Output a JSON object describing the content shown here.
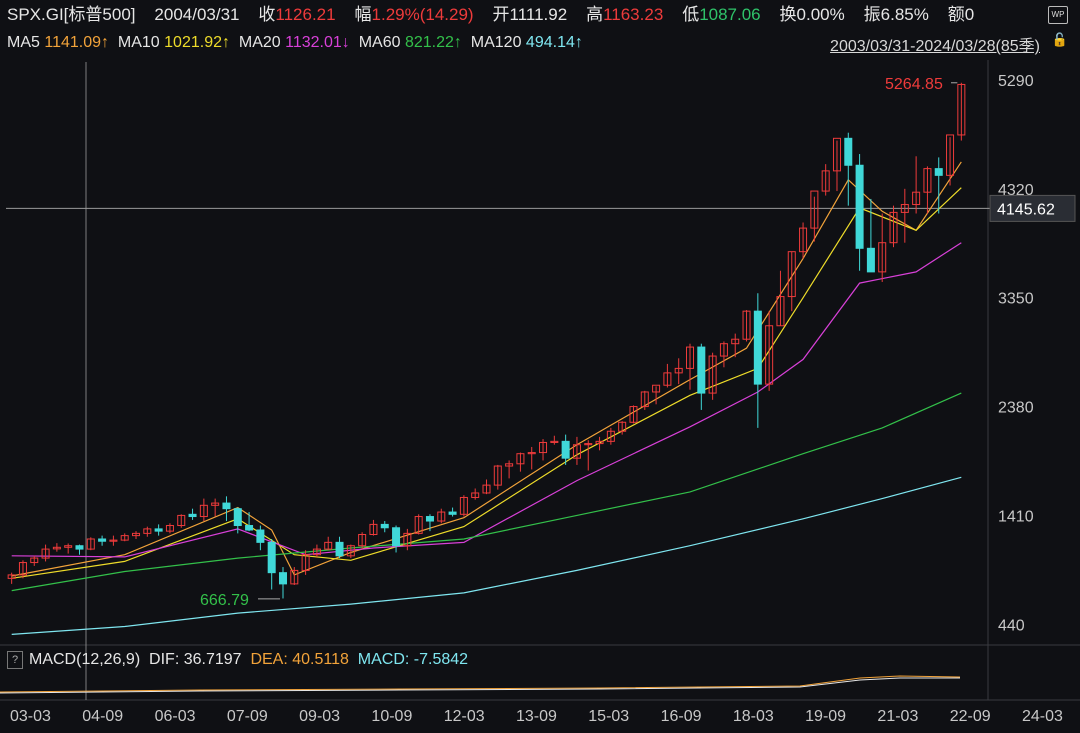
{
  "header": {
    "symbol": "SPX.GI[标普500]",
    "date": "2004/03/31",
    "close_label": "收",
    "close": "1126.21",
    "change_label": "幅",
    "change": "1.29%(14.29)",
    "open_label": "开",
    "open": "1111.92",
    "high_label": "高",
    "high": "1163.23",
    "low_label": "低",
    "low": "1087.06",
    "turnover_label": "换",
    "turnover": "0.00%",
    "amplitude_label": "振",
    "amplitude": "6.85%",
    "amount_label": "额",
    "amount": "0",
    "wp_label": "WP"
  },
  "ma_legend": {
    "ma5_label": "MA5",
    "ma5": "1141.09↑",
    "ma10_label": "MA10",
    "ma10": "1021.92↑",
    "ma20_label": "MA20",
    "ma20": "1132.01↓",
    "ma60_label": "MA60",
    "ma60": "821.22↑",
    "ma120_label": "MA120",
    "ma120": "494.14↑",
    "range": "2003/03/31-2024/03/28(85季)"
  },
  "macd": {
    "q": "?",
    "label": "MACD(12,26,9)",
    "dif": "DIF: 36.7197",
    "dea": "DEA: 40.5118",
    "macd": "MACD: -7.5842"
  },
  "colors": {
    "up": "#ee3b3b",
    "down": "#40d8d8",
    "ma5": "#f2a33a",
    "ma10": "#eedc2a",
    "ma20": "#d840d8",
    "ma60": "#33c04a",
    "ma120": "#7fe6f0",
    "crosshair": "#9a9a9a"
  },
  "chart_data": {
    "type": "candlestick",
    "period": "quarterly",
    "x_tick_labels": [
      "03-03",
      "04-09",
      "06-03",
      "07-09",
      "09-03",
      "10-09",
      "12-03",
      "13-09",
      "15-03",
      "16-09",
      "18-03",
      "19-09",
      "21-03",
      "22-09",
      "24-03"
    ],
    "y_tick_labels": [
      "5290",
      "4320",
      "3350",
      "2380",
      "1410",
      "440"
    ],
    "ylim": [
      300,
      5450
    ],
    "max_label": "5264.85",
    "min_label": "666.79",
    "crosshair_value": "4145.62",
    "candles": [
      [
        849,
        900,
        800,
        880
      ],
      [
        880,
        1010,
        850,
        990
      ],
      [
        990,
        1050,
        960,
        1030
      ],
      [
        1030,
        1150,
        1000,
        1110
      ],
      [
        1112,
        1163,
        1087,
        1126
      ],
      [
        1126,
        1160,
        1070,
        1140
      ],
      [
        1140,
        1150,
        1060,
        1110
      ],
      [
        1110,
        1215,
        1100,
        1200
      ],
      [
        1200,
        1230,
        1140,
        1180
      ],
      [
        1180,
        1230,
        1140,
        1190
      ],
      [
        1190,
        1250,
        1180,
        1230
      ],
      [
        1230,
        1270,
        1200,
        1250
      ],
      [
        1250,
        1310,
        1220,
        1290
      ],
      [
        1290,
        1330,
        1230,
        1270
      ],
      [
        1270,
        1340,
        1250,
        1320
      ],
      [
        1320,
        1420,
        1300,
        1410
      ],
      [
        1420,
        1470,
        1370,
        1400
      ],
      [
        1400,
        1560,
        1360,
        1500
      ],
      [
        1500,
        1560,
        1400,
        1520
      ],
      [
        1520,
        1580,
        1360,
        1470
      ],
      [
        1470,
        1480,
        1250,
        1320
      ],
      [
        1320,
        1440,
        1270,
        1280
      ],
      [
        1280,
        1320,
        1100,
        1170
      ],
      [
        1170,
        1200,
        750,
        900
      ],
      [
        900,
        950,
        670,
        800
      ],
      [
        800,
        950,
        790,
        920
      ],
      [
        920,
        1100,
        880,
        1060
      ],
      [
        1060,
        1150,
        1040,
        1110
      ],
      [
        1110,
        1220,
        1100,
        1170
      ],
      [
        1170,
        1220,
        1030,
        1050
      ],
      [
        1050,
        1150,
        1030,
        1140
      ],
      [
        1140,
        1260,
        1110,
        1240
      ],
      [
        1240,
        1370,
        1230,
        1330
      ],
      [
        1330,
        1360,
        1260,
        1300
      ],
      [
        1300,
        1320,
        1080,
        1140
      ],
      [
        1140,
        1290,
        1100,
        1250
      ],
      [
        1250,
        1420,
        1240,
        1400
      ],
      [
        1400,
        1420,
        1270,
        1360
      ],
      [
        1360,
        1470,
        1340,
        1440
      ],
      [
        1440,
        1480,
        1400,
        1420
      ],
      [
        1420,
        1590,
        1400,
        1570
      ],
      [
        1570,
        1650,
        1550,
        1610
      ],
      [
        1610,
        1730,
        1600,
        1680
      ],
      [
        1680,
        1860,
        1640,
        1850
      ],
      [
        1850,
        1900,
        1740,
        1870
      ],
      [
        1870,
        1970,
        1800,
        1960
      ],
      [
        1960,
        2020,
        1820,
        1970
      ],
      [
        1970,
        2090,
        1900,
        2060
      ],
      [
        2060,
        2120,
        2040,
        2070
      ],
      [
        2070,
        2130,
        1860,
        1920
      ],
      [
        1920,
        2110,
        1860,
        2040
      ],
      [
        2040,
        2080,
        1810,
        2050
      ],
      [
        2050,
        2110,
        1990,
        2070
      ],
      [
        2070,
        2190,
        2040,
        2160
      ],
      [
        2160,
        2250,
        2130,
        2240
      ],
      [
        2240,
        2390,
        2230,
        2380
      ],
      [
        2380,
        2520,
        2350,
        2510
      ],
      [
        2510,
        2560,
        2400,
        2570
      ],
      [
        2570,
        2760,
        2550,
        2680
      ],
      [
        2680,
        2810,
        2580,
        2720
      ],
      [
        2720,
        2940,
        2530,
        2910
      ],
      [
        2910,
        2940,
        2350,
        2500
      ],
      [
        2500,
        2860,
        2440,
        2830
      ],
      [
        2830,
        2960,
        2730,
        2940
      ],
      [
        2940,
        3030,
        2820,
        2980
      ],
      [
        2980,
        3240,
        2960,
        3230
      ],
      [
        3230,
        3390,
        2190,
        2580
      ],
      [
        2580,
        3230,
        2520,
        3100
      ],
      [
        3100,
        3590,
        3100,
        3360
      ],
      [
        3360,
        3760,
        3230,
        3760
      ],
      [
        3760,
        4020,
        3700,
        3970
      ],
      [
        3970,
        4250,
        3850,
        4300
      ],
      [
        4300,
        4540,
        4260,
        4480
      ],
      [
        4480,
        4750,
        4300,
        4770
      ],
      [
        4770,
        4820,
        4170,
        4530
      ],
      [
        4530,
        4630,
        3590,
        3790
      ],
      [
        3790,
        4230,
        3630,
        3580
      ],
      [
        3580,
        4100,
        3490,
        3840
      ],
      [
        3840,
        4170,
        3800,
        4110
      ],
      [
        4110,
        4320,
        3840,
        4180
      ],
      [
        4180,
        4610,
        4100,
        4290
      ],
      [
        4290,
        4520,
        4100,
        4500
      ],
      [
        4500,
        4600,
        4100,
        4440
      ],
      [
        4440,
        4780,
        4350,
        4800
      ],
      [
        4800,
        5265,
        4750,
        5250
      ]
    ],
    "ma_series": [
      {
        "name": "MA5",
        "values": [
          [
            0,
            870
          ],
          [
            10,
            1060
          ],
          [
            20,
            1480
          ],
          [
            23,
            1280
          ],
          [
            25,
            880
          ],
          [
            30,
            1080
          ],
          [
            40,
            1390
          ],
          [
            50,
            2040
          ],
          [
            60,
            2620
          ],
          [
            65,
            2900
          ],
          [
            70,
            3700
          ],
          [
            74,
            4400
          ],
          [
            77,
            4120
          ],
          [
            80,
            3950
          ],
          [
            84,
            4560
          ]
        ]
      },
      {
        "name": "MA10",
        "values": [
          [
            0,
            850
          ],
          [
            10,
            1000
          ],
          [
            20,
            1380
          ],
          [
            25,
            1060
          ],
          [
            30,
            1010
          ],
          [
            40,
            1310
          ],
          [
            50,
            1950
          ],
          [
            60,
            2480
          ],
          [
            66,
            2720
          ],
          [
            70,
            3350
          ],
          [
            75,
            4150
          ],
          [
            80,
            3950
          ],
          [
            84,
            4330
          ]
        ]
      },
      {
        "name": "MA20",
        "values": [
          [
            0,
            1050
          ],
          [
            10,
            1040
          ],
          [
            20,
            1290
          ],
          [
            26,
            1060
          ],
          [
            32,
            1120
          ],
          [
            40,
            1170
          ],
          [
            50,
            1720
          ],
          [
            60,
            2200
          ],
          [
            66,
            2510
          ],
          [
            70,
            2800
          ],
          [
            75,
            3480
          ],
          [
            80,
            3580
          ],
          [
            84,
            3840
          ]
        ]
      },
      {
        "name": "MA60",
        "values": [
          [
            0,
            740
          ],
          [
            10,
            910
          ],
          [
            20,
            1030
          ],
          [
            30,
            1120
          ],
          [
            40,
            1200
          ],
          [
            50,
            1410
          ],
          [
            60,
            1620
          ],
          [
            70,
            1960
          ],
          [
            77,
            2190
          ],
          [
            84,
            2500
          ]
        ]
      },
      {
        "name": "MA120",
        "values": [
          [
            0,
            350
          ],
          [
            10,
            420
          ],
          [
            20,
            540
          ],
          [
            30,
            620
          ],
          [
            40,
            720
          ],
          [
            50,
            920
          ],
          [
            60,
            1140
          ],
          [
            70,
            1380
          ],
          [
            77,
            1560
          ],
          [
            84,
            1750
          ]
        ]
      }
    ]
  }
}
